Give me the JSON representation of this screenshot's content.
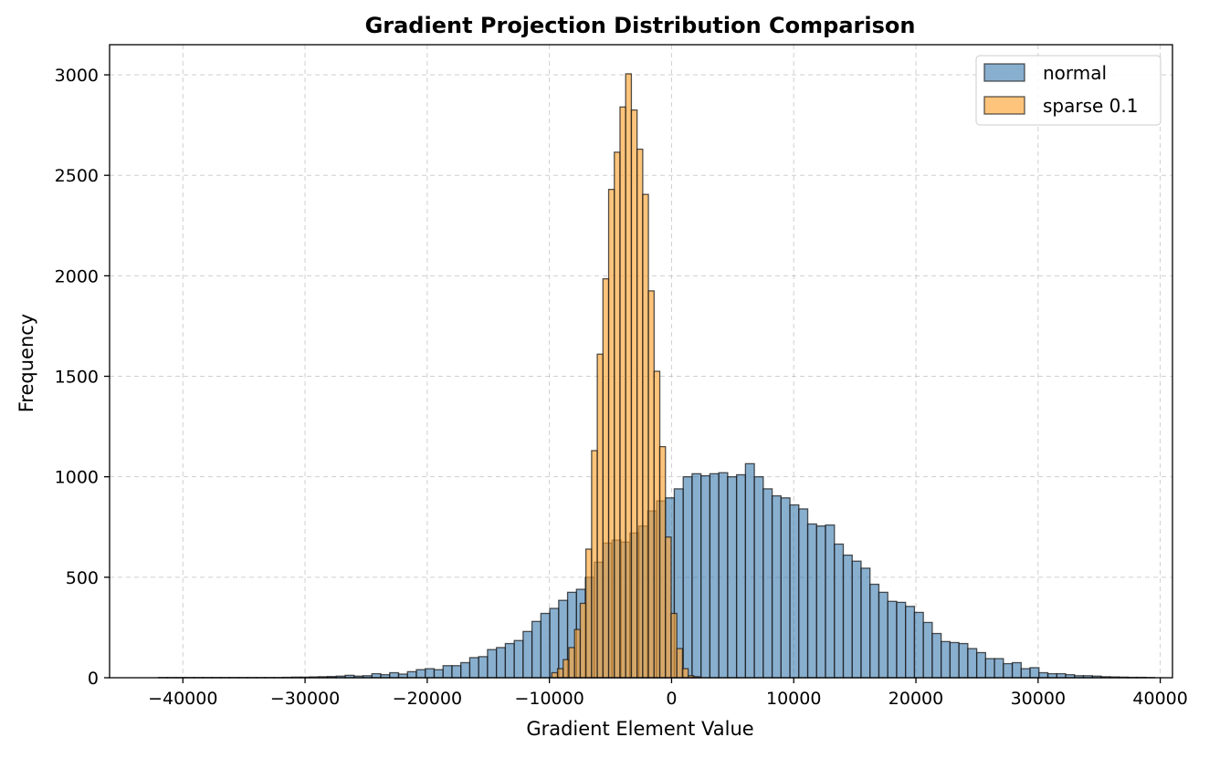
{
  "chart_data": {
    "type": "bar",
    "title": "Gradient Projection Distribution Comparison",
    "xlabel": "Gradient Element Value",
    "ylabel": "Frequency",
    "xlim": [
      -46000,
      41000
    ],
    "ylim": [
      0,
      3150
    ],
    "x_ticks": [
      -40000,
      -30000,
      -20000,
      -10000,
      0,
      10000,
      20000,
      30000,
      40000
    ],
    "x_tick_labels": [
      "−40000",
      "−30000",
      "−20000",
      "−10000",
      "0",
      "10000",
      "20000",
      "30000",
      "40000"
    ],
    "y_ticks": [
      0,
      500,
      1000,
      1500,
      2000,
      2500,
      3000
    ],
    "y_tick_labels": [
      "0",
      "500",
      "1000",
      "1500",
      "2000",
      "2500",
      "3000"
    ],
    "grid": true,
    "legend_position": "top-right",
    "series": [
      {
        "name": "normal",
        "color": "#4682b4",
        "bin_start": -42000,
        "bin_width": 728,
        "values": [
          1,
          1,
          1,
          1,
          1,
          1,
          1,
          1,
          1,
          1,
          1,
          1,
          1,
          1,
          2,
          3,
          3,
          4,
          5,
          6,
          8,
          12,
          8,
          10,
          20,
          15,
          25,
          18,
          30,
          40,
          45,
          40,
          60,
          60,
          75,
          100,
          105,
          140,
          150,
          170,
          185,
          230,
          280,
          320,
          345,
          385,
          425,
          440,
          500,
          575,
          670,
          685,
          675,
          720,
          755,
          830,
          880,
          895,
          940,
          1000,
          1015,
          1005,
          1015,
          1020,
          1000,
          1010,
          1065,
          1000,
          940,
          905,
          895,
          860,
          840,
          765,
          755,
          760,
          665,
          610,
          580,
          545,
          465,
          425,
          380,
          375,
          355,
          325,
          275,
          220,
          180,
          175,
          170,
          145,
          125,
          95,
          95,
          70,
          75,
          45,
          50,
          25,
          20,
          20,
          15,
          10,
          10,
          8,
          5,
          4,
          3,
          2,
          2,
          1
        ]
      },
      {
        "name": "sparse 0.1",
        "color": "#ffa330",
        "bin_start": -9800,
        "bin_width": 465,
        "values": [
          25,
          45,
          90,
          150,
          240,
          370,
          640,
          1130,
          1610,
          1985,
          2430,
          2615,
          2840,
          3005,
          2825,
          2630,
          2405,
          1925,
          1525,
          1150,
          700,
          320,
          145,
          45,
          10,
          5
        ]
      }
    ],
    "legend_labels": [
      "normal",
      "sparse 0.1"
    ]
  }
}
